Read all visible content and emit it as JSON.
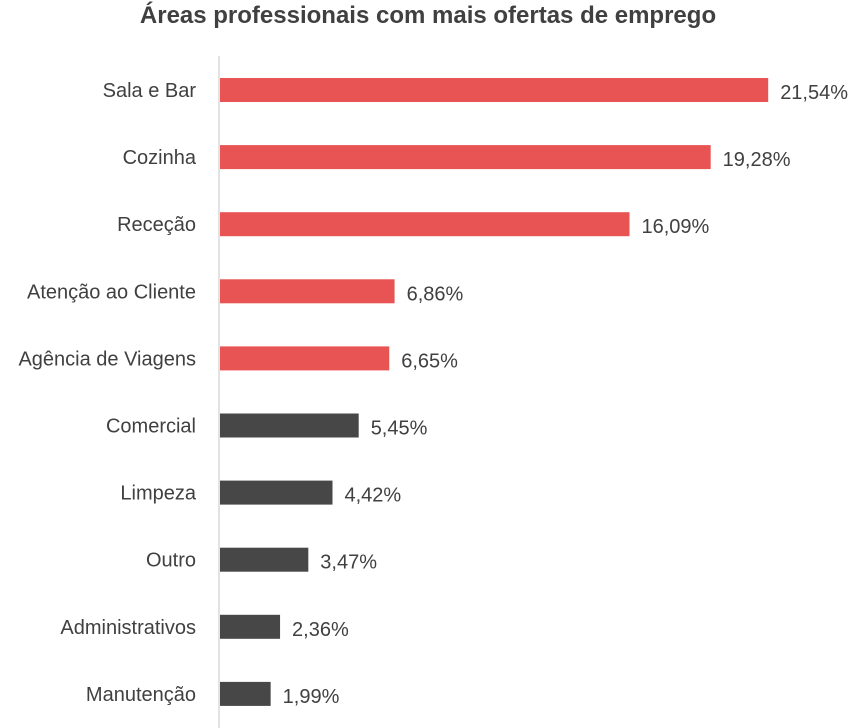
{
  "chart_data": {
    "type": "bar",
    "orientation": "horizontal",
    "title": "Áreas professionais com mais ofertas de emprego",
    "xlabel": "",
    "ylabel": "",
    "grid": false,
    "xlim": [
      0,
      23
    ],
    "categories": [
      "Sala e Bar",
      "Cozinha",
      "Receção",
      "Atenção ao Cliente",
      "Agência de Viagens",
      "Comercial",
      "Limpeza",
      "Outro",
      "Administrativos",
      "Manutenção"
    ],
    "values": [
      21.54,
      19.28,
      16.09,
      6.86,
      6.65,
      5.45,
      4.42,
      3.47,
      2.36,
      1.99
    ],
    "value_labels": [
      "21,54%",
      "19,28%",
      "16,09%",
      "6,86%",
      "6,65%",
      "5,45%",
      "4,42%",
      "3,47%",
      "2,36%",
      "1,99%"
    ],
    "highlighted_top_count": 5,
    "colors": {
      "highlight": "#e85353",
      "default": "#474747",
      "axis": "#d9d9d9",
      "text": "#404040"
    }
  }
}
